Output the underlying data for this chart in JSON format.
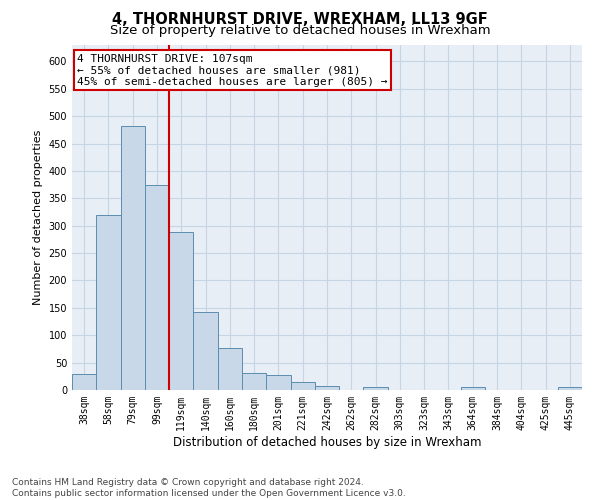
{
  "title": "4, THORNHURST DRIVE, WREXHAM, LL13 9GF",
  "subtitle": "Size of property relative to detached houses in Wrexham",
  "xlabel": "Distribution of detached houses by size in Wrexham",
  "ylabel": "Number of detached properties",
  "categories": [
    "38sqm",
    "58sqm",
    "79sqm",
    "99sqm",
    "119sqm",
    "140sqm",
    "160sqm",
    "180sqm",
    "201sqm",
    "221sqm",
    "242sqm",
    "262sqm",
    "282sqm",
    "303sqm",
    "323sqm",
    "343sqm",
    "364sqm",
    "384sqm",
    "404sqm",
    "425sqm",
    "445sqm"
  ],
  "values": [
    30,
    320,
    483,
    375,
    288,
    143,
    76,
    31,
    27,
    15,
    8,
    0,
    5,
    0,
    0,
    0,
    5,
    0,
    0,
    0,
    5
  ],
  "bar_color": "#c8d8e8",
  "bar_edge_color": "#5b8db0",
  "grid_color": "#c5d5e5",
  "background_color": "#ffffff",
  "plot_bg_color": "#e8eef5",
  "vline_x_index": 3,
  "vline_color": "#cc0000",
  "annotation_line1": "4 THORNHURST DRIVE: 107sqm",
  "annotation_line2": "← 55% of detached houses are smaller (981)",
  "annotation_line3": "45% of semi-detached houses are larger (805) →",
  "annotation_box_color": "#ffffff",
  "annotation_box_edge": "#cc0000",
  "ylim": [
    0,
    630
  ],
  "yticks": [
    0,
    50,
    100,
    150,
    200,
    250,
    300,
    350,
    400,
    450,
    500,
    550,
    600
  ],
  "footer": "Contains HM Land Registry data © Crown copyright and database right 2024.\nContains public sector information licensed under the Open Government Licence v3.0.",
  "title_fontsize": 10.5,
  "subtitle_fontsize": 9.5,
  "xlabel_fontsize": 8.5,
  "ylabel_fontsize": 8,
  "tick_fontsize": 7,
  "annotation_fontsize": 8,
  "footer_fontsize": 6.5
}
